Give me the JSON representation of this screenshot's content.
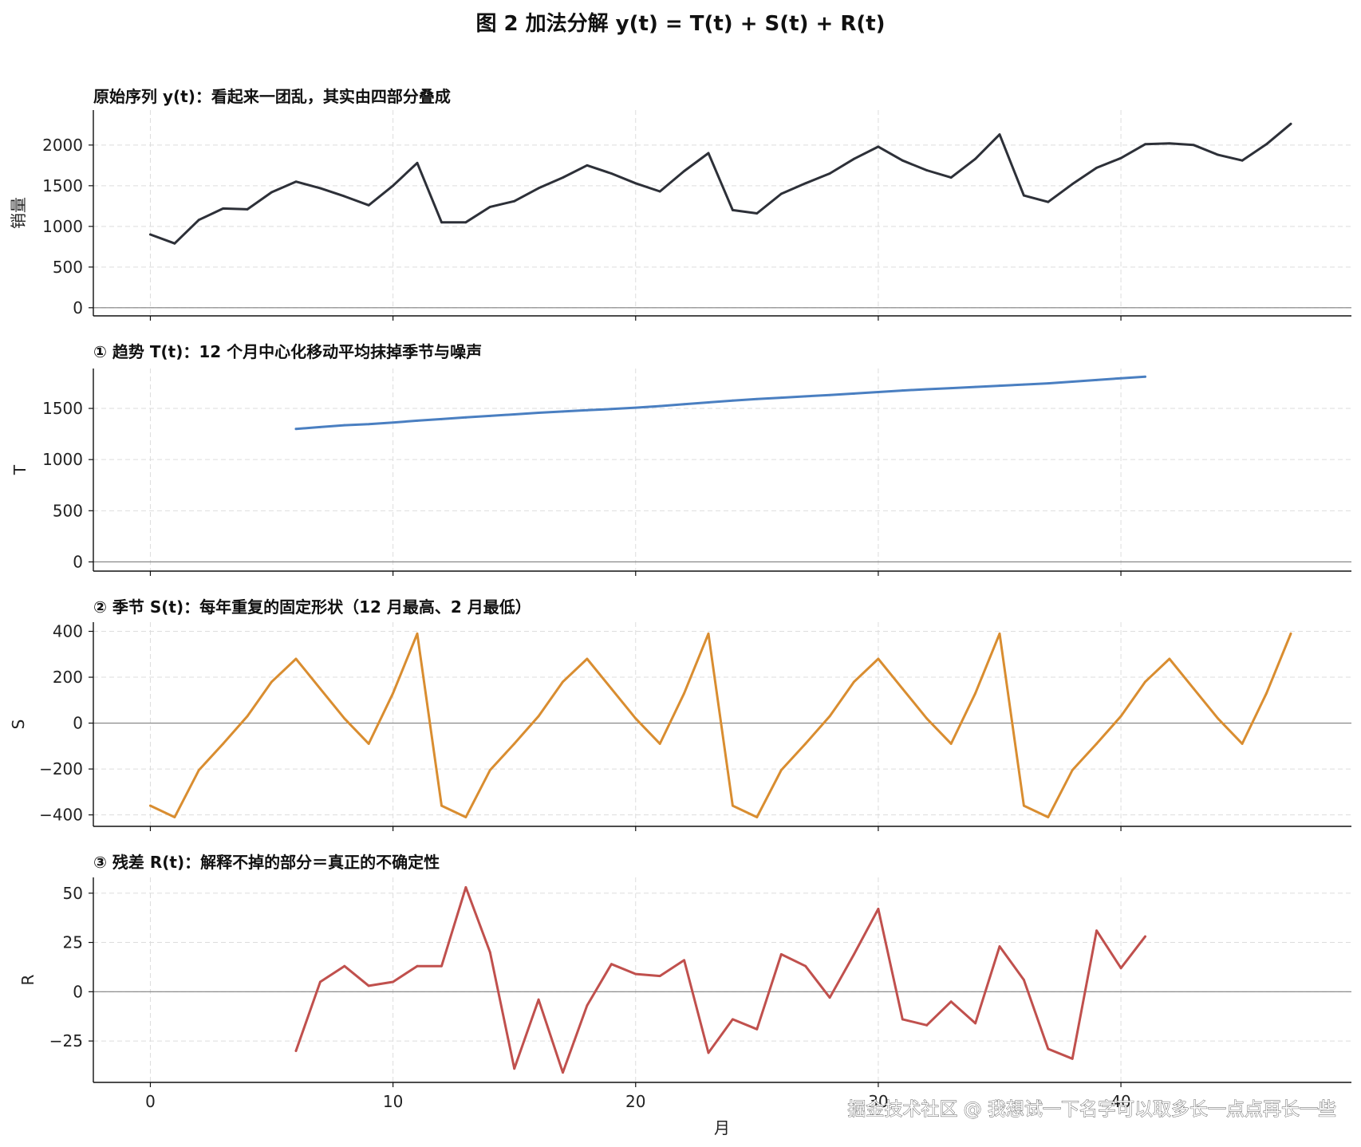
{
  "figure": {
    "title": "图 2  加法分解  y(t) = T(t) + S(t) + R(t)",
    "watermark": "掘金技术社区 @ 我想试一下名字可以取多长一点点再长一些",
    "xlabel": "月"
  },
  "colors": {
    "observed": "#2d3038",
    "trend": "#4a7fc1",
    "seasonal": "#d98d30",
    "residual": "#c0504d",
    "zero_line": "#808080",
    "grid": "#dddddd"
  },
  "chart_data": [
    {
      "type": "line",
      "title": "原始序列 y(t)：看起来一团乱，其实由四部分叠成",
      "ylabel": "销量",
      "xlim": [
        -2.35,
        49.5
      ],
      "ylim": [
        -100,
        2430
      ],
      "yticks": [
        0,
        500,
        1000,
        1500,
        2000
      ],
      "ytick_labels": [
        "0",
        "500",
        "1000",
        "1500",
        "2000"
      ],
      "xticks": [
        0,
        10,
        20,
        30,
        40
      ],
      "grid": true,
      "series": [
        {
          "color": "#2d3038",
          "x": [
            0,
            1,
            2,
            3,
            4,
            5,
            6,
            7,
            8,
            9,
            10,
            11,
            12,
            13,
            14,
            15,
            16,
            17,
            18,
            19,
            20,
            21,
            22,
            23,
            24,
            25,
            26,
            27,
            28,
            29,
            30,
            31,
            32,
            33,
            34,
            35,
            36,
            37,
            38,
            39,
            40,
            41,
            42,
            43,
            44,
            45,
            46,
            47
          ],
          "values": [
            900,
            790,
            1080,
            1220,
            1210,
            1420,
            1550,
            1470,
            1370,
            1260,
            1500,
            1780,
            1050,
            1050,
            1240,
            1310,
            1470,
            1600,
            1750,
            1650,
            1530,
            1430,
            1680,
            1900,
            1200,
            1160,
            1400,
            1530,
            1650,
            1830,
            1980,
            1810,
            1690,
            1600,
            1830,
            2130,
            1380,
            1300,
            1520,
            1720,
            1840,
            2010,
            2020,
            2000,
            1880,
            1810,
            2010,
            2260
          ]
        }
      ]
    },
    {
      "type": "line",
      "title": "① 趋势 T(t)：12 个月中心化移动平均抹掉季节与噪声",
      "ylabel": "T",
      "xlim": [
        -2.35,
        49.5
      ],
      "ylim": [
        -90,
        1890
      ],
      "yticks": [
        0,
        500,
        1000,
        1500
      ],
      "ytick_labels": [
        "0",
        "500",
        "1000",
        "1500"
      ],
      "xticks": [
        0,
        10,
        20,
        30,
        40
      ],
      "grid": true,
      "series": [
        {
          "color": "#4a7fc1",
          "x": [
            6,
            7,
            8,
            9,
            10,
            11,
            12,
            13,
            14,
            15,
            16,
            17,
            18,
            19,
            20,
            21,
            22,
            23,
            24,
            25,
            26,
            27,
            28,
            29,
            30,
            31,
            32,
            33,
            34,
            35,
            36,
            37,
            38,
            39,
            40,
            41
          ],
          "values": [
            1300,
            1318,
            1336,
            1346,
            1362,
            1380,
            1396,
            1412,
            1427,
            1442,
            1457,
            1470,
            1482,
            1494,
            1507,
            1523,
            1541,
            1559,
            1577,
            1592,
            1605,
            1618,
            1631,
            1645,
            1660,
            1675,
            1687,
            1698,
            1710,
            1722,
            1733,
            1745,
            1761,
            1778,
            1795,
            1810
          ]
        }
      ]
    },
    {
      "type": "line",
      "title": "② 季节 S(t)：每年重复的固定形状（12 月最高、2 月最低）",
      "ylabel": "S",
      "xlim": [
        -2.35,
        49.5
      ],
      "ylim": [
        -450,
        440
      ],
      "yticks": [
        -400,
        -200,
        0,
        200,
        400
      ],
      "ytick_labels": [
        "−400",
        "−200",
        "0",
        "200",
        "400"
      ],
      "xticks": [
        0,
        10,
        20,
        30,
        40
      ],
      "grid": true,
      "series": [
        {
          "color": "#d98d30",
          "x": [
            0,
            1,
            2,
            3,
            4,
            5,
            6,
            7,
            8,
            9,
            10,
            11,
            12,
            13,
            14,
            15,
            16,
            17,
            18,
            19,
            20,
            21,
            22,
            23,
            24,
            25,
            26,
            27,
            28,
            29,
            30,
            31,
            32,
            33,
            34,
            35,
            36,
            37,
            38,
            39,
            40,
            41,
            42,
            43,
            44,
            45,
            46,
            47
          ],
          "values": [
            -360,
            -410,
            -205,
            -90,
            30,
            180,
            280,
            150,
            20,
            -90,
            130,
            390,
            -360,
            -410,
            -205,
            -90,
            30,
            180,
            280,
            150,
            20,
            -90,
            130,
            390,
            -360,
            -410,
            -205,
            -90,
            30,
            180,
            280,
            150,
            20,
            -90,
            130,
            390,
            -360,
            -410,
            -205,
            -90,
            30,
            180,
            280,
            150,
            20,
            -90,
            130,
            390
          ]
        }
      ]
    },
    {
      "type": "line",
      "title": "③ 残差 R(t)：解释不掉的部分＝真正的不确定性",
      "ylabel": "R",
      "xlim": [
        -2.35,
        49.5
      ],
      "ylim": [
        -46,
        58
      ],
      "yticks": [
        -25,
        0,
        25,
        50
      ],
      "ytick_labels": [
        "−25",
        "0",
        "25",
        "50"
      ],
      "xticks": [
        0,
        10,
        20,
        30,
        40
      ],
      "xtick_labels": [
        "0",
        "10",
        "20",
        "30",
        "40"
      ],
      "xlabel": "月",
      "grid": true,
      "series": [
        {
          "color": "#c0504d",
          "x": [
            6,
            7,
            8,
            9,
            10,
            11,
            12,
            13,
            14,
            15,
            16,
            17,
            18,
            19,
            20,
            21,
            22,
            23,
            24,
            25,
            26,
            27,
            28,
            29,
            30,
            31,
            32,
            33,
            34,
            35,
            36,
            37,
            38,
            39,
            40,
            41
          ],
          "values": [
            -30,
            5,
            13,
            3,
            5,
            13,
            13,
            53,
            20,
            -39,
            -4,
            -41,
            -7,
            14,
            9,
            8,
            16,
            -31,
            -14,
            -19,
            19,
            13,
            -3,
            19,
            42,
            -14,
            -17,
            -5,
            -16,
            23,
            6,
            -29,
            -34,
            31,
            12,
            28
          ]
        }
      ]
    }
  ]
}
